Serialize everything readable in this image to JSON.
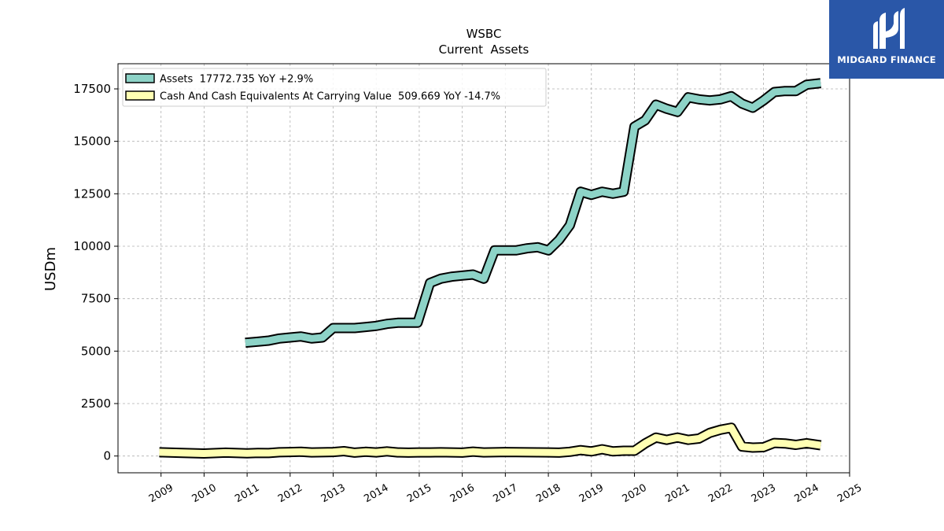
{
  "chart_data": {
    "type": "line",
    "title": "WSBC",
    "subtitle": "Current  Assets",
    "ylabel": "USDm",
    "xlabel": "",
    "ylim": [
      -800,
      18700
    ],
    "xlim": [
      2008.0,
      2025.0
    ],
    "yticks": [
      0,
      2500,
      5000,
      7500,
      10000,
      12500,
      15000,
      17500
    ],
    "ytick_labels": [
      "0",
      "2500",
      "5000",
      "7500",
      "10000",
      "12500",
      "15000",
      "17500"
    ],
    "xticks": [
      2009,
      2010,
      2011,
      2012,
      2013,
      2014,
      2015,
      2016,
      2017,
      2018,
      2019,
      2020,
      2021,
      2022,
      2023,
      2024,
      2025
    ],
    "xtick_labels": [
      "2009",
      "2010",
      "2011",
      "2012",
      "2013",
      "2014",
      "2015",
      "2016",
      "2017",
      "2018",
      "2019",
      "2020",
      "2021",
      "2022",
      "2023",
      "2024",
      "2025"
    ],
    "grid": true,
    "legend_position": "top-left",
    "series": [
      {
        "name": "Assets  17772.735 YoY +2.9%",
        "color": "#8dd3c7",
        "x": [
          2010.96,
          2011.25,
          2011.5,
          2011.75,
          2012.0,
          2012.25,
          2012.5,
          2012.75,
          2013.0,
          2013.25,
          2013.5,
          2013.75,
          2014.0,
          2014.25,
          2014.5,
          2014.75,
          2014.96,
          2015.25,
          2015.5,
          2015.75,
          2016.0,
          2016.25,
          2016.5,
          2016.75,
          2017.0,
          2017.25,
          2017.5,
          2017.75,
          2018.0,
          2018.25,
          2018.5,
          2018.75,
          2019.0,
          2019.25,
          2019.5,
          2019.75,
          2020.0,
          2020.25,
          2020.5,
          2020.75,
          2021.0,
          2021.25,
          2021.5,
          2021.75,
          2022.0,
          2022.25,
          2022.5,
          2022.75,
          2023.0,
          2023.25,
          2023.5,
          2023.75,
          2024.0,
          2024.33
        ],
        "values": [
          5400,
          5450,
          5500,
          5600,
          5650,
          5700,
          5600,
          5650,
          6100,
          6100,
          6100,
          6150,
          6200,
          6300,
          6350,
          6350,
          6350,
          8250,
          8450,
          8550,
          8600,
          8650,
          8450,
          9800,
          9800,
          9800,
          9900,
          9950,
          9800,
          10300,
          11000,
          12600,
          12450,
          12600,
          12500,
          12600,
          15700,
          16000,
          16750,
          16550,
          16400,
          17100,
          17000,
          16950,
          17000,
          17150,
          16800,
          16600,
          16950,
          17350,
          17400,
          17400,
          17700,
          17773
        ]
      },
      {
        "name": "Cash And Cash Equivalents At Carrying Value  509.669 YoY -14.7%",
        "color": "#ffffb3",
        "x": [
          2008.96,
          2009.5,
          2010.0,
          2010.5,
          2011.0,
          2011.25,
          2011.5,
          2011.75,
          2012.0,
          2012.25,
          2012.5,
          2012.75,
          2013.0,
          2013.25,
          2013.5,
          2013.75,
          2014.0,
          2014.25,
          2014.5,
          2014.75,
          2015.0,
          2015.25,
          2015.5,
          2015.75,
          2016.0,
          2016.25,
          2016.5,
          2016.75,
          2017.0,
          2017.5,
          2018.0,
          2018.25,
          2018.5,
          2018.75,
          2019.0,
          2019.25,
          2019.5,
          2019.75,
          2020.0,
          2020.25,
          2020.5,
          2020.75,
          2021.0,
          2021.25,
          2021.5,
          2021.75,
          2022.0,
          2022.25,
          2022.5,
          2022.75,
          2023.0,
          2023.25,
          2023.5,
          2023.75,
          2024.0,
          2024.33
        ],
        "values": [
          180,
          150,
          120,
          160,
          130,
          150,
          140,
          180,
          190,
          200,
          170,
          180,
          190,
          230,
          160,
          200,
          170,
          220,
          170,
          160,
          170,
          170,
          180,
          170,
          160,
          210,
          170,
          180,
          190,
          180,
          170,
          160,
          200,
          280,
          220,
          320,
          220,
          250,
          250,
          600,
          880,
          770,
          880,
          770,
          830,
          1100,
          1250,
          1350,
          450,
          400,
          420,
          620,
          600,
          530,
          610,
          510
        ]
      }
    ]
  },
  "logo": {
    "text": "MIDGARD FINANCE",
    "background": "#2a57a8"
  }
}
